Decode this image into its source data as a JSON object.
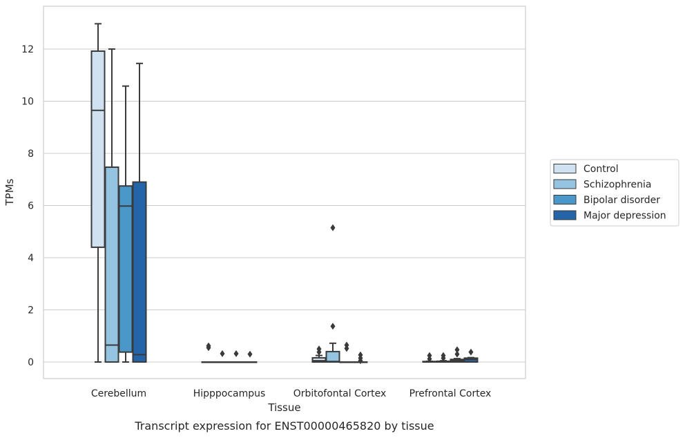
{
  "chart_data": {
    "type": "boxplot",
    "caption": "Transcript expression for ENST00000465820 by tissue",
    "xlabel": "Tissue",
    "ylabel": "TPMs",
    "ylim": [
      -0.65,
      13.6
    ],
    "yticks": [
      0,
      2,
      4,
      6,
      8,
      10,
      12
    ],
    "grid": "horizontal",
    "legend_position": "right",
    "categories": [
      "Cerebellum",
      "Hipppocampus",
      "Orbitofontal Cortex",
      "Prefrontal Cortex"
    ],
    "series": [
      {
        "name": "Control",
        "color": "#d0e1f2",
        "boxes": [
          {
            "whislo": 0,
            "q1": 4.4,
            "med": 9.65,
            "q3": 11.92,
            "whishi": 12.97,
            "fliers": []
          },
          {
            "whislo": 0,
            "q1": 0,
            "med": 0,
            "q3": 0,
            "whishi": 0,
            "fliers": [
              0.55,
              0.62
            ]
          },
          {
            "whislo": 0,
            "q1": 0,
            "med": 0.05,
            "q3": 0.16,
            "whishi": 0.25,
            "fliers": [
              0.38,
              0.5
            ]
          },
          {
            "whislo": 0,
            "q1": 0,
            "med": 0,
            "q3": 0.02,
            "whishi": 0.03,
            "fliers": [
              0.12,
              0.25
            ]
          }
        ]
      },
      {
        "name": "Schizophrenia",
        "color": "#94c4df",
        "boxes": [
          {
            "whislo": 0,
            "q1": 0,
            "med": 0.65,
            "q3": 7.47,
            "whishi": 12.0,
            "fliers": []
          },
          {
            "whislo": 0,
            "q1": 0,
            "med": 0,
            "q3": 0,
            "whishi": 0,
            "fliers": [
              0.32
            ]
          },
          {
            "whislo": 0,
            "q1": 0,
            "med": 0.02,
            "q3": 0.4,
            "whishi": 0.72,
            "fliers": [
              1.37,
              5.15
            ]
          },
          {
            "whislo": 0,
            "q1": 0,
            "med": 0,
            "q3": 0.03,
            "whishi": 0.05,
            "fliers": [
              0.15,
              0.25
            ]
          }
        ]
      },
      {
        "name": "Bipolar disorder",
        "color": "#4a98c9",
        "boxes": [
          {
            "whislo": 0,
            "q1": 0.38,
            "med": 5.98,
            "q3": 6.75,
            "whishi": 10.58,
            "fliers": []
          },
          {
            "whislo": 0,
            "q1": 0,
            "med": 0,
            "q3": 0,
            "whishi": 0,
            "fliers": [
              0.32
            ]
          },
          {
            "whislo": 0,
            "q1": 0,
            "med": 0,
            "q3": 0,
            "whishi": 0,
            "fliers": [
              0.52,
              0.65
            ]
          },
          {
            "whislo": 0,
            "q1": 0,
            "med": 0.05,
            "q3": 0.1,
            "whishi": 0.13,
            "fliers": [
              0.3,
              0.47
            ]
          }
        ]
      },
      {
        "name": "Major depression",
        "color": "#2464a8",
        "boxes": [
          {
            "whislo": 0,
            "q1": 0,
            "med": 0.28,
            "q3": 6.9,
            "whishi": 11.45,
            "fliers": []
          },
          {
            "whislo": 0,
            "q1": 0,
            "med": 0,
            "q3": 0,
            "whishi": 0,
            "fliers": [
              0.3
            ]
          },
          {
            "whislo": 0,
            "q1": 0,
            "med": 0,
            "q3": 0,
            "whishi": 0,
            "fliers": [
              0.05,
              0.15,
              0.27
            ]
          },
          {
            "whislo": 0,
            "q1": 0,
            "med": 0.1,
            "q3": 0.15,
            "whishi": 0.17,
            "fliers": [
              0.38
            ]
          }
        ]
      }
    ]
  }
}
